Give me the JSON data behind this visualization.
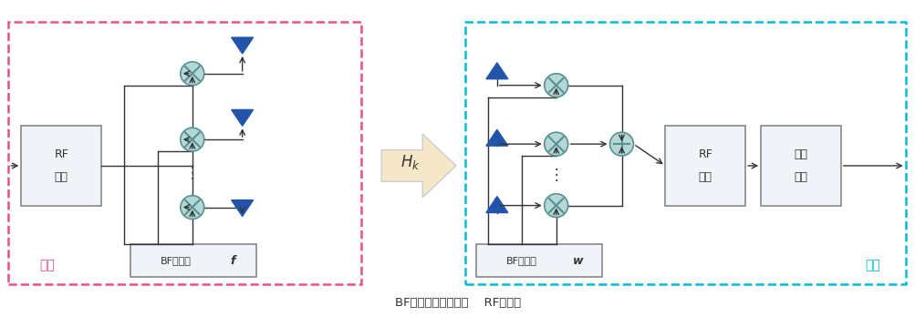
{
  "fig_width": 10.04,
  "fig_height": 3.48,
  "bg_color": "#ffffff",
  "left_box_color": "#e8508a",
  "right_box_color": "#00bcd4",
  "block_fill": "#f0f4f8",
  "block_edge": "#888888",
  "circle_fill": "#b2d8d8",
  "circle_edge": "#5a9090",
  "antenna_color": "#2255aa",
  "big_arrow_fill": "#f5e8c8",
  "big_arrow_edge": "#cccccc",
  "caption": "BF：自适应波束赋形    RF：射频",
  "label_BS": "基站",
  "label_UE": "用户",
  "label_BF1_text": "BF向量：",
  "label_BF1_var": "f",
  "label_BF2_text": "BF向量：",
  "label_BF2_var": "w",
  "line_color": "#333333",
  "text_color": "#333333"
}
